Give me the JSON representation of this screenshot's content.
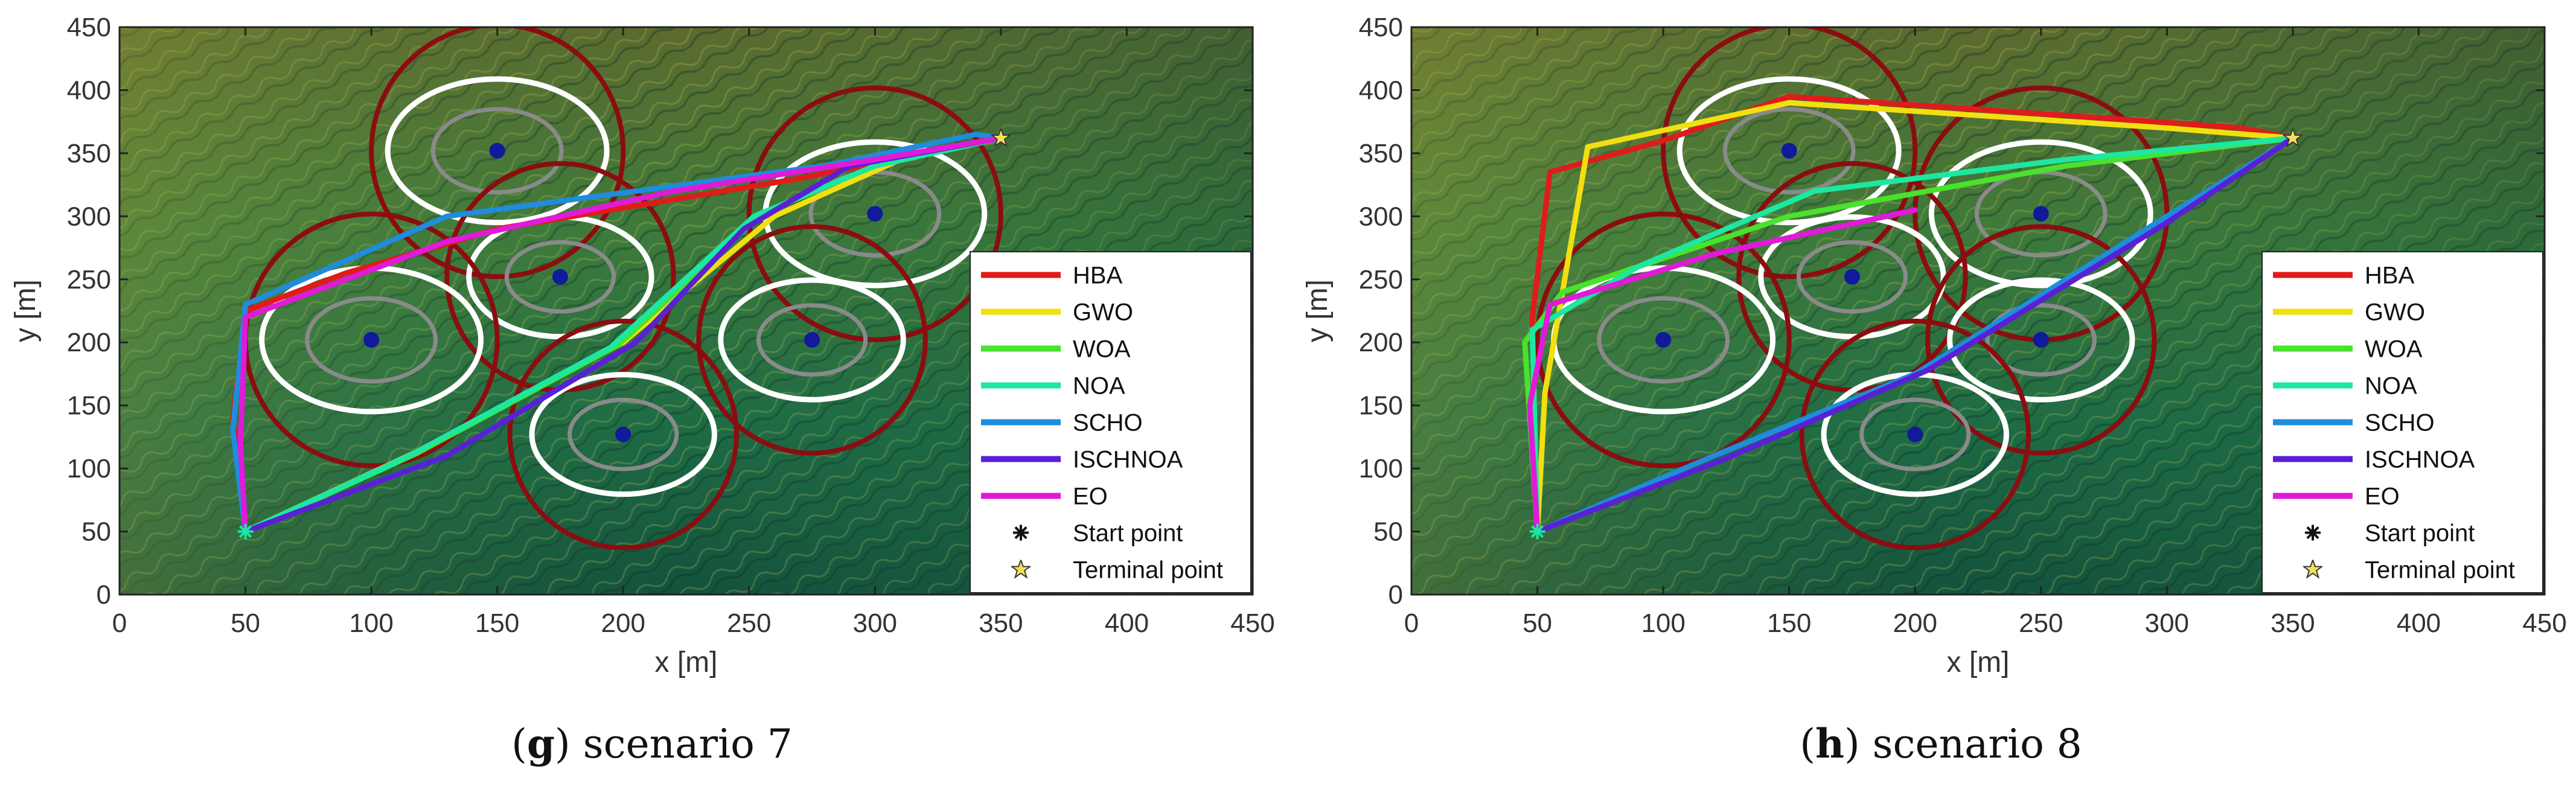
{
  "chart_data": [
    {
      "type": "line",
      "caption_letter": "g",
      "caption_text": "scenario 7",
      "xlabel": "x [m]",
      "ylabel": "y [m]",
      "xlim": [
        0,
        450
      ],
      "ylim": [
        0,
        450
      ],
      "xticks": [
        0,
        50,
        100,
        150,
        200,
        250,
        300,
        350,
        400,
        450
      ],
      "yticks": [
        0,
        50,
        100,
        150,
        200,
        250,
        300,
        350,
        400,
        450
      ],
      "legend_position": "bottom-right",
      "background": "terrain",
      "start_point": [
        50,
        50
      ],
      "terminal_point": [
        350,
        362
      ],
      "threats": [
        {
          "x": 150,
          "y": 352,
          "r_outer": 50,
          "r_white": 30
        },
        {
          "x": 300,
          "y": 302,
          "r_outer": 50,
          "r_white": 30
        },
        {
          "x": 175,
          "y": 252,
          "r_outer": 45,
          "r_white": 25
        },
        {
          "x": 100,
          "y": 202,
          "r_outer": 50,
          "r_white": 30
        },
        {
          "x": 275,
          "y": 202,
          "r_outer": 45,
          "r_white": 25
        },
        {
          "x": 200,
          "y": 127,
          "r_outer": 45,
          "r_white": 25
        }
      ],
      "series": [
        {
          "name": "HBA",
          "color": "#e01b1b",
          "points": [
            [
              50,
              50
            ],
            [
              45,
              140
            ],
            [
              50,
              225
            ],
            [
              90,
              255
            ],
            [
              150,
              290
            ],
            [
              210,
              310
            ],
            [
              270,
              330
            ],
            [
              320,
              350
            ],
            [
              350,
              362
            ]
          ]
        },
        {
          "name": "GWO",
          "color": "#f2df10",
          "points": [
            [
              50,
              50
            ],
            [
              120,
              115
            ],
            [
              200,
              200
            ],
            [
              260,
              300
            ],
            [
              310,
              345
            ],
            [
              350,
              362
            ]
          ]
        },
        {
          "name": "WOA",
          "color": "#49e22c",
          "points": [
            [
              50,
              50
            ],
            [
              118,
              112
            ],
            [
              198,
              198
            ],
            [
              255,
              302
            ],
            [
              300,
              340
            ],
            [
              350,
              362
            ]
          ]
        },
        {
          "name": "NOA",
          "color": "#1de7a0",
          "points": [
            [
              50,
              50
            ],
            [
              115,
              110
            ],
            [
              195,
              196
            ],
            [
              252,
              300
            ],
            [
              300,
              340
            ],
            [
              350,
              362
            ]
          ]
        },
        {
          "name": "SCHO",
          "color": "#1f8cdc",
          "points": [
            [
              50,
              50
            ],
            [
              45,
              130
            ],
            [
              50,
              230
            ],
            [
              130,
              300
            ],
            [
              280,
              340
            ],
            [
              340,
              365
            ],
            [
              350,
              362
            ]
          ]
        },
        {
          "name": "ISCHNOA",
          "color": "#5a20d6",
          "points": [
            [
              50,
              50
            ],
            [
              130,
              110
            ],
            [
              205,
              200
            ],
            [
              248,
              290
            ],
            [
              290,
              340
            ],
            [
              350,
              362
            ]
          ]
        },
        {
          "name": "EO",
          "color": "#e01ad8",
          "points": [
            [
              50,
              50
            ],
            [
              48,
              120
            ],
            [
              50,
              220
            ],
            [
              130,
              280
            ],
            [
              220,
              320
            ],
            [
              300,
              345
            ],
            [
              350,
              362
            ]
          ]
        }
      ],
      "legend_extra": [
        "Start point",
        "Terminal point"
      ]
    },
    {
      "type": "line",
      "caption_letter": "h",
      "caption_text": "scenario 8",
      "xlabel": "x [m]",
      "ylabel": "y [m]",
      "xlim": [
        0,
        450
      ],
      "ylim": [
        0,
        450
      ],
      "xticks": [
        0,
        50,
        100,
        150,
        200,
        250,
        300,
        350,
        400,
        450
      ],
      "yticks": [
        0,
        50,
        100,
        150,
        200,
        250,
        300,
        350,
        400,
        450
      ],
      "legend_position": "bottom-right",
      "background": "terrain",
      "start_point": [
        50,
        50
      ],
      "terminal_point": [
        350,
        362
      ],
      "threats": [
        {
          "x": 150,
          "y": 352,
          "r_outer": 50,
          "r_white": 30
        },
        {
          "x": 250,
          "y": 302,
          "r_outer": 50,
          "r_white": 30
        },
        {
          "x": 175,
          "y": 252,
          "r_outer": 45,
          "r_white": 25
        },
        {
          "x": 100,
          "y": 202,
          "r_outer": 50,
          "r_white": 30
        },
        {
          "x": 250,
          "y": 202,
          "r_outer": 45,
          "r_white": 25
        },
        {
          "x": 200,
          "y": 127,
          "r_outer": 45,
          "r_white": 25
        }
      ],
      "series": [
        {
          "name": "HBA",
          "color": "#e01b1b",
          "points": [
            [
              50,
              50
            ],
            [
              48,
              220
            ],
            [
              55,
              335
            ],
            [
              100,
              360
            ],
            [
              150,
              395
            ],
            [
              260,
              380
            ],
            [
              330,
              370
            ],
            [
              350,
              362
            ]
          ]
        },
        {
          "name": "GWO",
          "color": "#f2df10",
          "points": [
            [
              50,
              50
            ],
            [
              53,
              160
            ],
            [
              70,
              355
            ],
            [
              150,
              390
            ],
            [
              300,
              370
            ],
            [
              350,
              362
            ]
          ]
        },
        {
          "name": "WOA",
          "color": "#49e22c",
          "points": [
            [
              50,
              50
            ],
            [
              45,
              200
            ],
            [
              60,
              240
            ],
            [
              150,
              300
            ],
            [
              260,
              340
            ],
            [
              350,
              362
            ]
          ]
        },
        {
          "name": "NOA",
          "color": "#1de7a0",
          "points": [
            [
              50,
              50
            ],
            [
              48,
              210
            ],
            [
              90,
              260
            ],
            [
              160,
              320
            ],
            [
              260,
              345
            ],
            [
              350,
              362
            ]
          ]
        },
        {
          "name": "SCHO",
          "color": "#1f8cdc",
          "points": [
            [
              50,
              50
            ],
            [
              120,
              110
            ],
            [
              200,
              175
            ],
            [
              300,
              300
            ],
            [
              350,
              362
            ]
          ]
        },
        {
          "name": "ISCHNOA",
          "color": "#5a20d6",
          "points": [
            [
              50,
              50
            ],
            [
              125,
              108
            ],
            [
              205,
              178
            ],
            [
              300,
              295
            ],
            [
              350,
              362
            ]
          ]
        },
        {
          "name": "EO",
          "color": "#e01ad8",
          "points": [
            [
              50,
              50
            ],
            [
              47,
              150
            ],
            [
              55,
              230
            ],
            [
              120,
              270
            ],
            [
              200,
              305
            ]
          ]
        }
      ],
      "legend_extra": [
        "Start point",
        "Terminal point"
      ]
    }
  ]
}
